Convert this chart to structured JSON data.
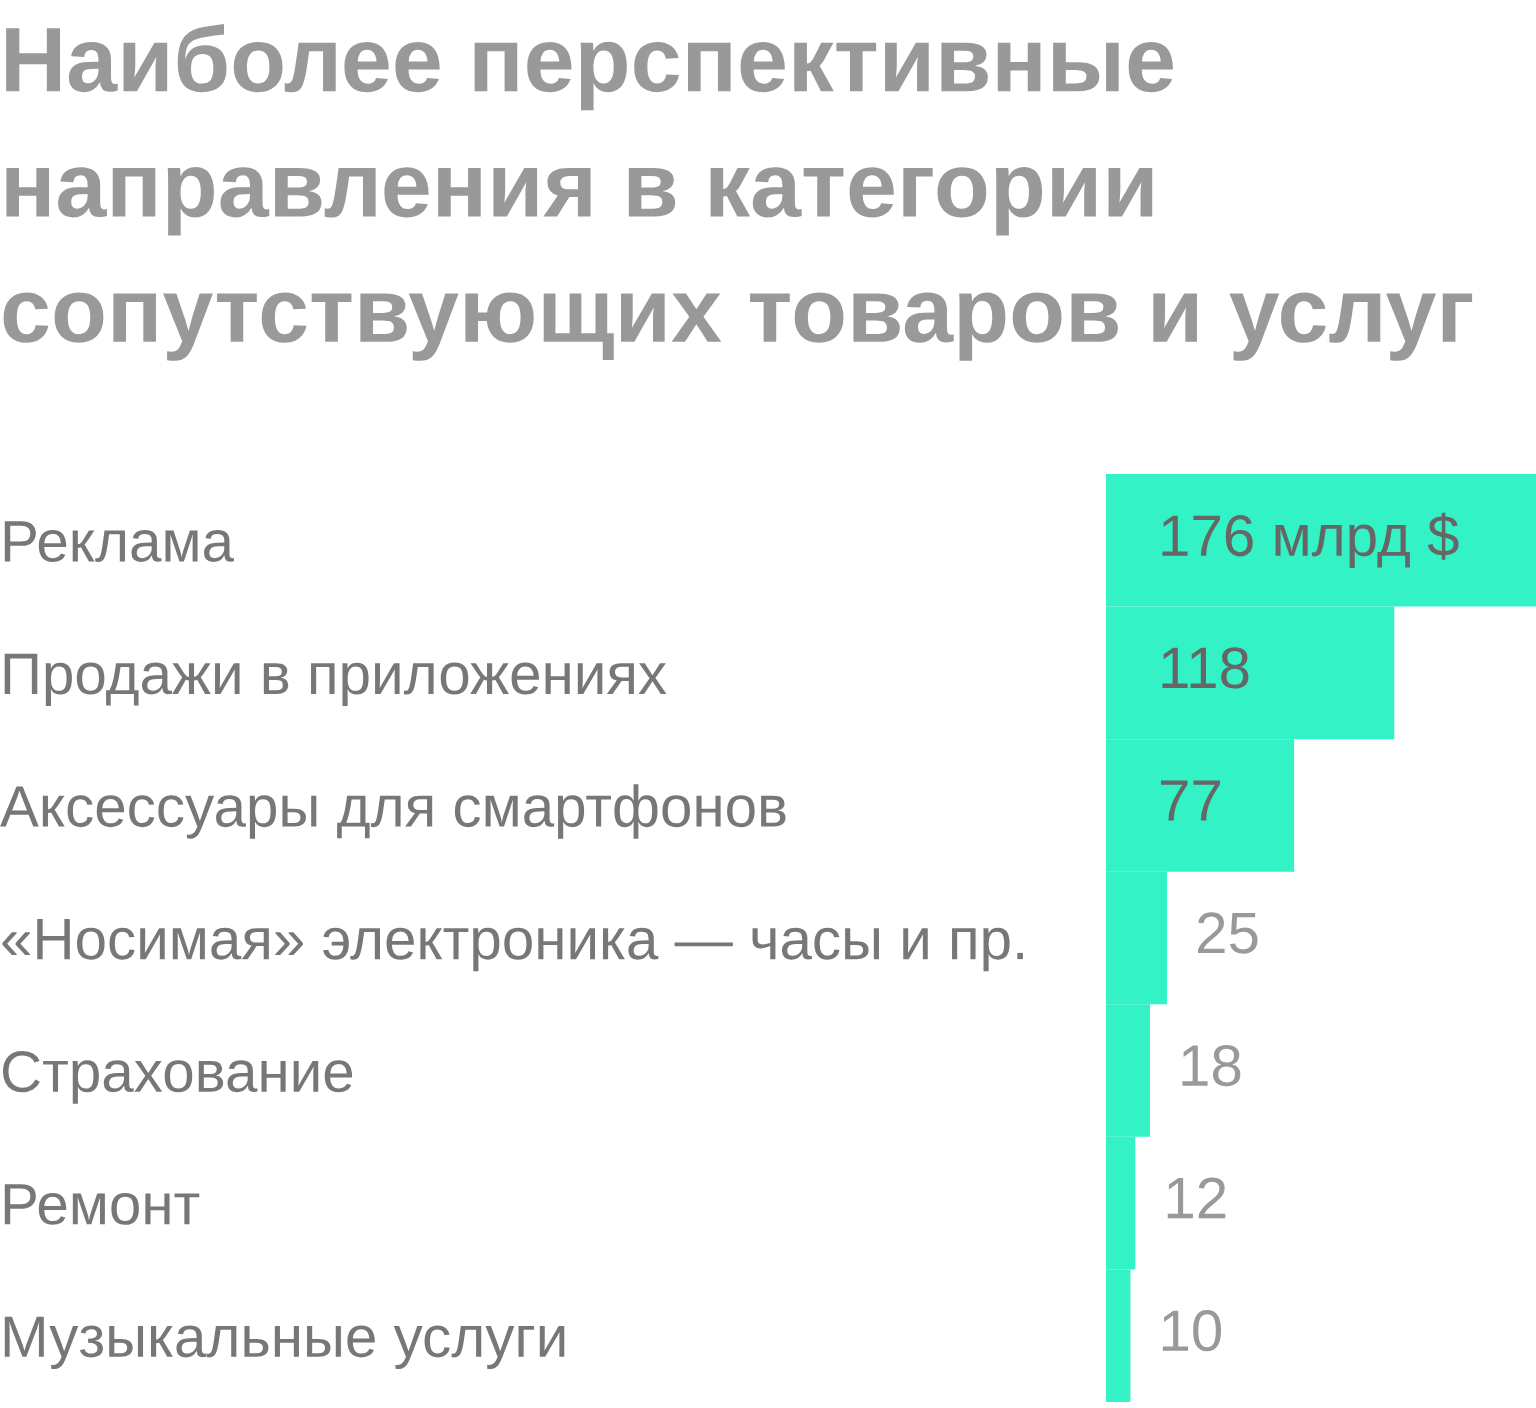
{
  "chart_data": {
    "type": "bar",
    "orientation": "horizontal",
    "title": "Наиболее перспективные\nнаправления в категории\nсопутствующих товаров и услуг",
    "categories": [
      "Реклама",
      "Продажи в приложениях",
      "Аксессуары для смартфонов",
      "«Носимая» электроника — часы и пр.",
      "Страхование",
      "Ремонт",
      "Музыкальные услуги"
    ],
    "values": [
      176,
      118,
      77,
      25,
      18,
      12,
      10
    ],
    "value_labels": [
      "176 млрд $",
      "118",
      "77",
      "25",
      "18",
      "12",
      "10"
    ],
    "color": "#33f2c5",
    "xlim": [
      0,
      176
    ]
  }
}
